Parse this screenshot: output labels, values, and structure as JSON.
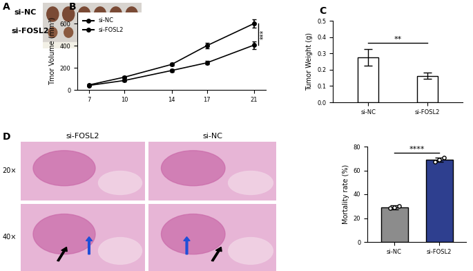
{
  "panel_labels": [
    "A",
    "B",
    "C",
    "D"
  ],
  "photo_A": {
    "row_labels": [
      "si-NC",
      "si-FOSL2"
    ]
  },
  "histology_D": {
    "column_labels": [
      "si-FOSL2",
      "si-NC"
    ],
    "row_labels": [
      "20×",
      "40×"
    ]
  },
  "chart_data": [
    {
      "type": "line",
      "y_label": "Tmor Volume (mm³)",
      "x": [
        7,
        10,
        14,
        17,
        21
      ],
      "xlim": [
        6,
        22
      ],
      "xticks": [
        7,
        10,
        14,
        17,
        21
      ],
      "ylim": [
        0,
        700
      ],
      "yticks": [
        0,
        200,
        400,
        600
      ],
      "legend": "upper left",
      "annotations": [
        "***"
      ],
      "series": [
        {
          "name": "si-NC",
          "color": "#000000",
          "marker": "o",
          "line_style": "solid",
          "values": [
            45,
            115,
            230,
            400,
            600
          ],
          "errors": [
            8,
            10,
            12,
            25,
            40
          ]
        },
        {
          "name": "si-FOSL2",
          "color": "#000000",
          "marker": "o",
          "line_style": "solid",
          "values": [
            40,
            85,
            175,
            245,
            405
          ],
          "errors": [
            5,
            8,
            10,
            15,
            35
          ]
        }
      ]
    },
    {
      "type": "bar",
      "y_label": "Tumor Weight (g)",
      "categories": [
        "si-NC",
        "si-FOSL2"
      ],
      "values": [
        0.275,
        0.163
      ],
      "errors": [
        0.05,
        0.02
      ],
      "color": "#ffffff",
      "ylim": [
        0,
        0.5
      ],
      "yticks": [
        {
          "value": 0,
          "label": "0.0"
        },
        0.1,
        0.2,
        0.3,
        0.4,
        0.5
      ],
      "annotations": [
        "**"
      ]
    },
    {
      "type": "bar",
      "y_label": "Mortality rate (%)",
      "categories": [
        "si-NC",
        "si-FOSL2"
      ],
      "values": [
        29,
        69
      ],
      "errors": [
        1.5,
        2
      ],
      "points": [
        [
          28.5,
          29,
          30
        ],
        [
          67.5,
          69,
          71
        ]
      ],
      "colors": [
        "#8c8c8c",
        "#2e3f8f"
      ],
      "ylim": [
        0,
        80
      ],
      "yticks": [
        0,
        20,
        40,
        60,
        80
      ],
      "annotations": [
        "****"
      ]
    }
  ]
}
